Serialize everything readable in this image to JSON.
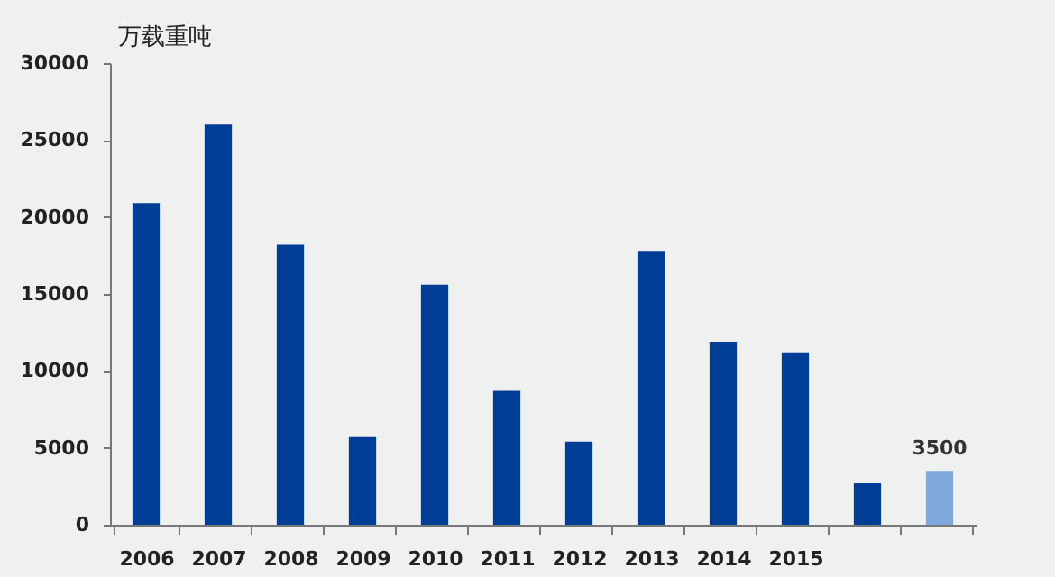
{
  "chart_data": {
    "type": "bar",
    "ylabel": "万载重吨",
    "categories": [
      "2006",
      "2007",
      "2008",
      "2009",
      "2010",
      "2011",
      "2012",
      "2013",
      "2014",
      "2015",
      null,
      null
    ],
    "values": [
      20900,
      26000,
      18200,
      5700,
      15600,
      8700,
      5400,
      17800,
      11900,
      11200,
      2700,
      3500
    ],
    "colors": [
      "#003d96",
      "#003d96",
      "#003d96",
      "#003d96",
      "#003d96",
      "#003d96",
      "#003d96",
      "#003d96",
      "#003d96",
      "#003d96",
      "#003d96",
      "#7fa8dc"
    ],
    "value_labels": [
      null,
      null,
      null,
      null,
      null,
      null,
      null,
      null,
      null,
      null,
      null,
      "3500"
    ],
    "ylim": [
      0,
      30000
    ],
    "yticks": [
      0,
      5000,
      10000,
      15000,
      20000,
      25000,
      30000
    ],
    "grid": false
  }
}
